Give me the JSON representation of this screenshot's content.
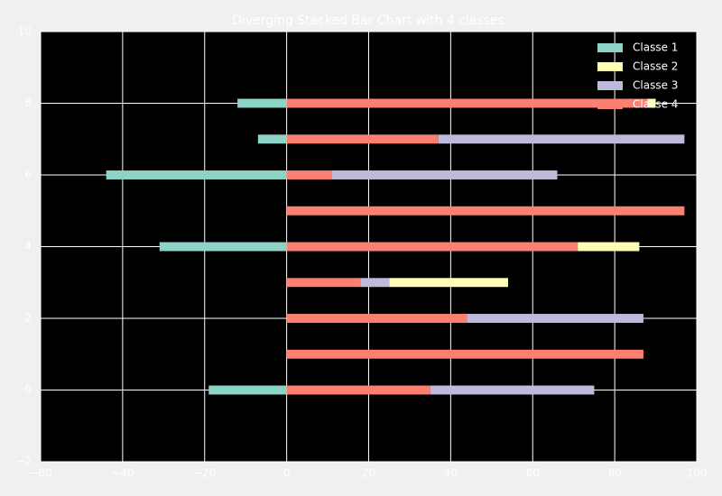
{
  "chart_data": {
    "type": "diverging-stacked-barh",
    "title": "Diverging Stacked Bar Chart with 4 classes",
    "y": [
      0,
      1,
      2,
      3,
      4,
      5,
      6,
      7,
      8
    ],
    "series": [
      {
        "name": "Classe 1",
        "color": "#8dd3c7",
        "values": [
          -19,
          0,
          0,
          0,
          -31,
          0,
          -44,
          -7,
          -12
        ]
      },
      {
        "name": "Classe 2",
        "color": "#ffffb3",
        "values": [
          0,
          0,
          0,
          29,
          15,
          0,
          0,
          0,
          2
        ]
      },
      {
        "name": "Classe 3",
        "color": "#bebada",
        "values": [
          40,
          0,
          43,
          7,
          0,
          0,
          55,
          60,
          0
        ]
      },
      {
        "name": "Classe 4",
        "color": "#fb8072",
        "values": [
          35,
          87,
          44,
          18,
          71,
          97,
          11,
          37,
          88
        ]
      }
    ],
    "xlim": [
      -60,
      100
    ],
    "xticks": [
      {
        "value": -60,
        "label": "−60"
      },
      {
        "value": -40,
        "label": "−40"
      },
      {
        "value": -20,
        "label": "−20"
      },
      0,
      20,
      40,
      60,
      80,
      100
    ],
    "ylim": [
      -2,
      10
    ],
    "yticks": [
      {
        "value": -2,
        "label": "−2"
      },
      0,
      2,
      4,
      6,
      8,
      10
    ],
    "grid": true,
    "legend": "upper-right"
  }
}
